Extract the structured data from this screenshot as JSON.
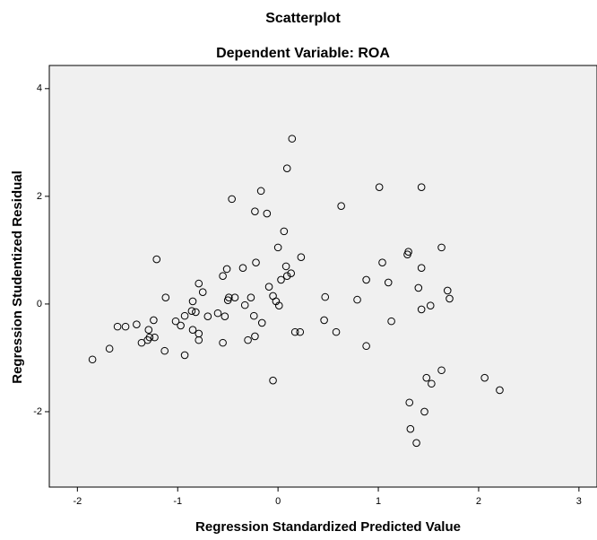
{
  "chart_data": {
    "type": "scatter",
    "title": "Scatterplot",
    "subtitle": "Dependent Variable: ROA",
    "x_label": "Regression Standardized Predicted Value",
    "y_label": "Regression Studentized Residual",
    "xlim": [
      -2.28,
      3.18
    ],
    "ylim": [
      -3.4,
      4.43
    ],
    "xticks": [
      -2,
      -1,
      0,
      1,
      2,
      3
    ],
    "yticks": [
      -2,
      0,
      2,
      4
    ],
    "series": [
      {
        "color": "#000000",
        "x": [
          0.14,
          0.09,
          -0.17,
          -0.46,
          -0.11,
          -0.23,
          0.63,
          1.01,
          1.43,
          0.06,
          -1.21,
          0,
          1.63,
          1.3,
          1.29,
          1.04,
          1.43,
          0.23,
          -0.22,
          0.08,
          -0.51,
          -0.35,
          0.13,
          0.09,
          -0.55,
          0.03,
          -0.79,
          0.88,
          1.1,
          -0.09,
          1.4,
          1.69,
          -0.75,
          -1.12,
          -0.49,
          -0.43,
          -0.27,
          0.47,
          -0.05,
          1.71,
          0.79,
          -0.85,
          -0.5,
          -0.02,
          0.01,
          -0.33,
          1.52,
          -0.86,
          -0.82,
          1.43,
          -0.6,
          -0.93,
          -0.7,
          -0.53,
          -0.24,
          -1.02,
          -1.24,
          -0.16,
          0.46,
          1.13,
          -0.97,
          -1.41,
          -1.6,
          -1.52,
          -1.29,
          -0.85,
          0.17,
          0.22,
          0.58,
          -0.79,
          -1.23,
          -1.28,
          -0.23,
          -0.3,
          -1.3,
          -0.79,
          -0.55,
          -1.36,
          -1.68,
          -1.13,
          0.88,
          -0.93,
          -1.85,
          -0.05,
          1.63,
          2.06,
          1.48,
          1.53,
          2.21,
          1.31,
          1.46,
          1.32,
          1.38
        ],
        "y": [
          3.07,
          2.52,
          2.1,
          1.95,
          1.68,
          1.72,
          1.82,
          2.17,
          2.17,
          1.35,
          0.83,
          1.05,
          1.05,
          0.97,
          0.92,
          0.77,
          0.67,
          0.87,
          0.77,
          0.7,
          0.65,
          0.67,
          0.57,
          0.52,
          0.52,
          0.45,
          0.38,
          0.45,
          0.4,
          0.32,
          0.3,
          0.25,
          0.22,
          0.12,
          0.12,
          0.12,
          0.12,
          0.13,
          0.15,
          0.1,
          0.08,
          0.05,
          0.07,
          0.05,
          -0.03,
          -0.02,
          -0.03,
          -0.13,
          -0.15,
          -0.1,
          -0.17,
          -0.22,
          -0.23,
          -0.23,
          -0.22,
          -0.32,
          -0.3,
          -0.35,
          -0.3,
          -0.32,
          -0.4,
          -0.38,
          -0.42,
          -0.42,
          -0.48,
          -0.48,
          -0.52,
          -0.52,
          -0.52,
          -0.55,
          -0.62,
          -0.62,
          -0.6,
          -0.67,
          -0.67,
          -0.67,
          -0.72,
          -0.72,
          -0.83,
          -0.87,
          -0.78,
          -0.95,
          -1.03,
          -1.42,
          -1.23,
          -1.37,
          -1.37,
          -1.48,
          -1.6,
          -1.83,
          -2.0,
          -2.32,
          -2.58
        ]
      }
    ]
  }
}
